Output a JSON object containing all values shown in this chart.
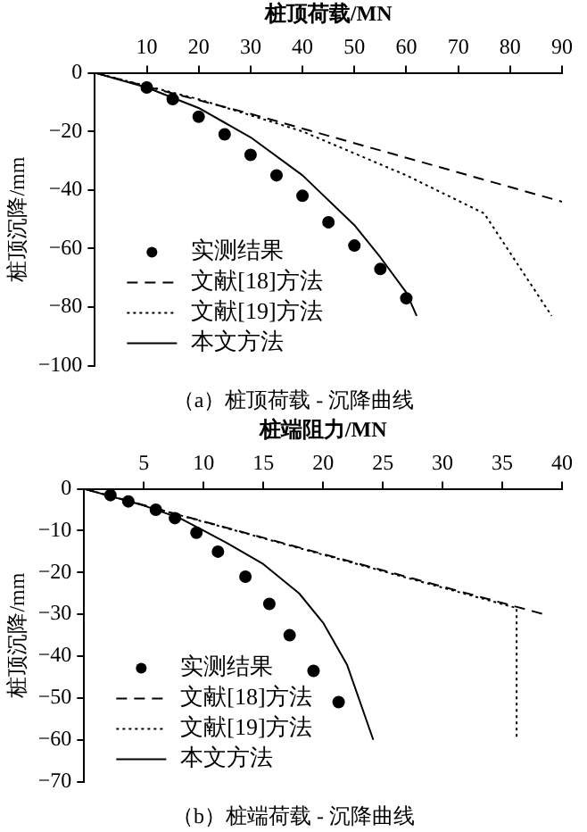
{
  "chart_data": [
    {
      "type": "line",
      "title": "（a）桩顶荷载 - 沉降曲线",
      "xlabel": "桩顶荷载/MN",
      "ylabel": "桩顶沉降/mm",
      "xlim": [
        0,
        90
      ],
      "xticks": [
        10,
        20,
        30,
        40,
        50,
        60,
        70,
        80,
        90
      ],
      "ylim": [
        -100,
        0
      ],
      "yticks": [
        0,
        -20,
        -40,
        -60,
        -80,
        -100
      ],
      "grid": false,
      "legend": "bottom left",
      "series": [
        {
          "name": "实测结果",
          "type": "scatter",
          "marker": "circle",
          "color": "#000000",
          "x": [
            10,
            15,
            20,
            25,
            30,
            35,
            40,
            45,
            50,
            55,
            60
          ],
          "values": [
            -5,
            -9,
            -15,
            -21,
            -28,
            -35,
            -42,
            -51,
            -59,
            -67,
            -77
          ]
        },
        {
          "name": "文献[18]方法",
          "line_style": "dashed",
          "color": "#000000",
          "x": [
            0,
            30,
            60,
            90
          ],
          "values": [
            0,
            -14,
            -29,
            -44
          ]
        },
        {
          "name": "文献[19]方法",
          "line_style": "dotted",
          "color": "#000000",
          "x": [
            0,
            20,
            40,
            60,
            75,
            88
          ],
          "values": [
            0,
            -9,
            -20,
            -35,
            -48,
            -83
          ]
        },
        {
          "name": "本文方法",
          "line_style": "solid",
          "color": "#000000",
          "x": [
            0,
            10,
            20,
            30,
            40,
            50,
            55,
            60,
            62
          ],
          "values": [
            0,
            -5,
            -12,
            -22,
            -35,
            -52,
            -63,
            -75,
            -83
          ]
        }
      ]
    },
    {
      "type": "line",
      "title": "（b）桩端荷载 - 沉降曲线",
      "xlabel": "桩端阻力/MN",
      "ylabel": "桩顶沉降/mm",
      "xlim": [
        0,
        40
      ],
      "xticks": [
        5,
        10,
        15,
        20,
        25,
        30,
        35,
        40
      ],
      "ylim": [
        -70,
        0
      ],
      "yticks": [
        0,
        -10,
        -20,
        -30,
        -40,
        -50,
        -60,
        -70
      ],
      "grid": false,
      "legend": "bottom left",
      "series": [
        {
          "name": "实测结果",
          "type": "scatter",
          "marker": "circle",
          "color": "#000000",
          "x": [
            2.2,
            3.7,
            6,
            7.6,
            9.4,
            11.2,
            13.5,
            15.5,
            17.2,
            19.2,
            21.3
          ],
          "values": [
            -1.5,
            -3,
            -5,
            -7,
            -10.5,
            -15,
            -21,
            -27.5,
            -35,
            -43.5,
            -51
          ]
        },
        {
          "name": "文献[18]方法",
          "line_style": "dashed",
          "color": "#000000",
          "x": [
            0,
            38.5
          ],
          "values": [
            0,
            -30
          ]
        },
        {
          "name": "文献[19]方法",
          "line_style": "dotted",
          "color": "#000000",
          "x": [
            0,
            36.2,
            36.2
          ],
          "values": [
            0,
            -28.5,
            -59.5
          ]
        },
        {
          "name": "本文方法",
          "line_style": "solid",
          "color": "#000000",
          "x": [
            0,
            5,
            8,
            10,
            12,
            15,
            18,
            20,
            22,
            24.2
          ],
          "values": [
            0,
            -4,
            -7,
            -10,
            -13,
            -18,
            -25,
            -32,
            -42,
            -60
          ]
        }
      ]
    }
  ]
}
